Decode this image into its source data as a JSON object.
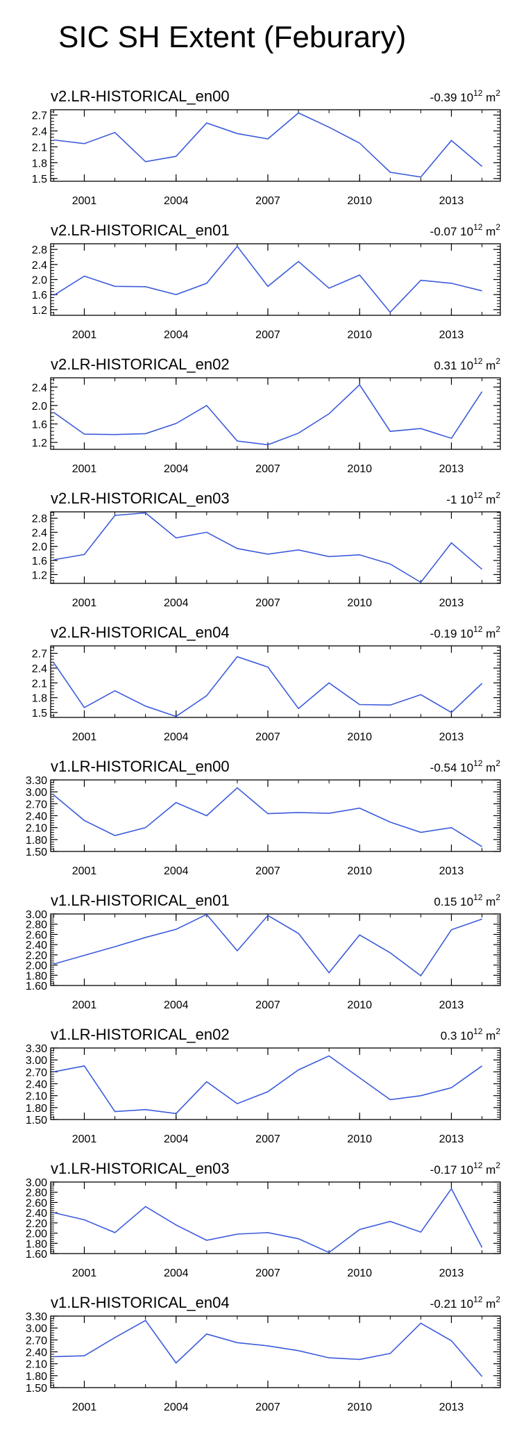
{
  "title": "SIC SH Extent (Feburary)",
  "line_color": "#3b5bdb",
  "chart_data": [
    {
      "type": "line",
      "title": "v2.LR-HISTORICAL_en00",
      "trend_value": "-0.39",
      "trend_unit": "10",
      "trend_exp": "12",
      "trend_suffix": "m",
      "trend_suffix_exp": "2",
      "x": [
        2000,
        2001,
        2002,
        2003,
        2004,
        2005,
        2006,
        2007,
        2008,
        2009,
        2010,
        2011,
        2012,
        2013,
        2014
      ],
      "values": [
        2.23,
        2.16,
        2.37,
        1.82,
        1.92,
        2.55,
        2.35,
        2.25,
        2.74,
        2.47,
        2.17,
        1.62,
        1.53,
        2.22,
        1.73
      ],
      "ylim": [
        1.45,
        2.8
      ],
      "yticks": [
        "1.5",
        "1.8",
        "2.1",
        "2.4",
        "2.7"
      ],
      "xticks": [
        "2001",
        "2004",
        "2007",
        "2010",
        "2013"
      ]
    },
    {
      "type": "line",
      "title": "v2.LR-HISTORICAL_en01",
      "trend_value": "-0.07",
      "trend_unit": "10",
      "trend_exp": "12",
      "trend_suffix": "m",
      "trend_suffix_exp": "2",
      "x": [
        2000,
        2001,
        2002,
        2003,
        2004,
        2005,
        2006,
        2007,
        2008,
        2009,
        2010,
        2011,
        2012,
        2013,
        2014
      ],
      "values": [
        1.58,
        2.09,
        1.82,
        1.81,
        1.6,
        1.9,
        2.88,
        1.82,
        2.48,
        1.77,
        2.12,
        1.13,
        1.98,
        1.9,
        1.7
      ],
      "ylim": [
        1.05,
        2.95
      ],
      "yticks": [
        "1.2",
        "1.6",
        "2.0",
        "2.4",
        "2.8"
      ],
      "xticks": [
        "2001",
        "2004",
        "2007",
        "2010",
        "2013"
      ]
    },
    {
      "type": "line",
      "title": "v2.LR-HISTORICAL_en02",
      "trend_value": "0.31",
      "trend_unit": "10",
      "trend_exp": "12",
      "trend_suffix": "m",
      "trend_suffix_exp": "2",
      "x": [
        2000,
        2001,
        2002,
        2003,
        2004,
        2005,
        2006,
        2007,
        2008,
        2009,
        2010,
        2011,
        2012,
        2013,
        2014
      ],
      "values": [
        1.85,
        1.38,
        1.37,
        1.39,
        1.61,
        2.0,
        1.23,
        1.15,
        1.4,
        1.82,
        2.45,
        1.44,
        1.5,
        1.29,
        2.3
      ],
      "ylim": [
        1.05,
        2.6
      ],
      "yticks": [
        "1.2",
        "1.6",
        "2.0",
        "2.4"
      ],
      "xticks": [
        "2001",
        "2004",
        "2007",
        "2010",
        "2013"
      ]
    },
    {
      "type": "line",
      "title": "v2.LR-HISTORICAL_en03",
      "trend_value": "-1",
      "trend_unit": "10",
      "trend_exp": "12",
      "trend_suffix": "m",
      "trend_suffix_exp": "2",
      "x": [
        2000,
        2001,
        2002,
        2003,
        2004,
        2005,
        2006,
        2007,
        2008,
        2009,
        2010,
        2011,
        2012,
        2013,
        2014
      ],
      "values": [
        1.62,
        1.77,
        2.88,
        2.95,
        2.24,
        2.4,
        1.94,
        1.78,
        1.9,
        1.71,
        1.76,
        1.5,
        0.98,
        2.1,
        1.35
      ],
      "ylim": [
        0.95,
        2.98
      ],
      "yticks": [
        "1.2",
        "1.6",
        "2.0",
        "2.4",
        "2.8"
      ],
      "xticks": [
        "2001",
        "2004",
        "2007",
        "2010",
        "2013"
      ]
    },
    {
      "type": "line",
      "title": "v2.LR-HISTORICAL_en04",
      "trend_value": "-0.19",
      "trend_unit": "10",
      "trend_exp": "12",
      "trend_suffix": "m",
      "trend_suffix_exp": "2",
      "x": [
        2000,
        2001,
        2002,
        2003,
        2004,
        2005,
        2006,
        2007,
        2008,
        2009,
        2010,
        2011,
        2012,
        2013,
        2014
      ],
      "values": [
        2.51,
        1.6,
        1.94,
        1.63,
        1.42,
        1.84,
        2.63,
        2.42,
        1.58,
        2.1,
        1.66,
        1.65,
        1.86,
        1.5,
        2.09
      ],
      "ylim": [
        1.4,
        2.85
      ],
      "yticks": [
        "1.5",
        "1.8",
        "2.1",
        "2.4",
        "2.7"
      ],
      "xticks": [
        "2001",
        "2004",
        "2007",
        "2010",
        "2013"
      ]
    },
    {
      "type": "line",
      "title": "v1.LR-HISTORICAL_en00",
      "trend_value": "-0.54",
      "trend_unit": "10",
      "trend_exp": "12",
      "trend_suffix": "m",
      "trend_suffix_exp": "2",
      "x": [
        2000,
        2001,
        2002,
        2003,
        2004,
        2005,
        2006,
        2007,
        2008,
        2009,
        2010,
        2011,
        2012,
        2013,
        2014
      ],
      "values": [
        2.92,
        2.28,
        1.9,
        2.1,
        2.73,
        2.4,
        3.1,
        2.45,
        2.48,
        2.46,
        2.59,
        2.24,
        1.98,
        2.1,
        1.62
      ],
      "ylim": [
        1.5,
        3.3
      ],
      "yticks": [
        "1.50",
        "1.80",
        "2.10",
        "2.40",
        "2.70",
        "3.00",
        "3.30"
      ],
      "xticks": [
        "2001",
        "2004",
        "2007",
        "2010",
        "2013"
      ]
    },
    {
      "type": "line",
      "title": "v1.LR-HISTORICAL_en01",
      "trend_value": "0.15",
      "trend_unit": "10",
      "trend_exp": "12",
      "trend_suffix": "m",
      "trend_suffix_exp": "2",
      "x": [
        2000,
        2001,
        2002,
        2003,
        2004,
        2005,
        2006,
        2007,
        2008,
        2009,
        2010,
        2011,
        2012,
        2013,
        2014
      ],
      "values": [
        2.02,
        2.19,
        2.36,
        2.54,
        2.7,
        2.99,
        2.28,
        2.97,
        2.62,
        1.85,
        2.59,
        2.24,
        1.79,
        2.69,
        2.9
      ],
      "ylim": [
        1.6,
        3.0
      ],
      "yticks": [
        "1.60",
        "1.80",
        "2.00",
        "2.20",
        "2.40",
        "2.60",
        "2.80",
        "3.00"
      ],
      "xticks": [
        "2001",
        "2004",
        "2007",
        "2010",
        "2013"
      ]
    },
    {
      "type": "line",
      "title": "v1.LR-HISTORICAL_en02",
      "trend_value": "0.3",
      "trend_unit": "10",
      "trend_exp": "12",
      "trend_suffix": "m",
      "trend_suffix_exp": "2",
      "x": [
        2000,
        2001,
        2002,
        2003,
        2004,
        2005,
        2006,
        2007,
        2008,
        2009,
        2010,
        2011,
        2012,
        2013,
        2014
      ],
      "values": [
        2.7,
        2.85,
        1.7,
        1.75,
        1.65,
        2.45,
        1.9,
        2.2,
        2.75,
        3.1,
        2.55,
        2.0,
        2.1,
        2.3,
        2.85
      ],
      "ylim": [
        1.5,
        3.3
      ],
      "yticks": [
        "1.50",
        "1.80",
        "2.10",
        "2.40",
        "2.70",
        "3.00",
        "3.30"
      ],
      "xticks": [
        "2001",
        "2004",
        "2007",
        "2010",
        "2013"
      ]
    },
    {
      "type": "line",
      "title": "v1.LR-HISTORICAL_en03",
      "trend_value": "-0.17",
      "trend_unit": "10",
      "trend_exp": "12",
      "trend_suffix": "m",
      "trend_suffix_exp": "2",
      "x": [
        2000,
        2001,
        2002,
        2003,
        2004,
        2005,
        2006,
        2007,
        2008,
        2009,
        2010,
        2011,
        2012,
        2013,
        2014
      ],
      "values": [
        2.4,
        2.26,
        2.01,
        2.52,
        2.16,
        1.86,
        1.98,
        2.01,
        1.89,
        1.62,
        2.07,
        2.23,
        2.02,
        2.87,
        1.72
      ],
      "ylim": [
        1.6,
        3.0
      ],
      "yticks": [
        "1.60",
        "1.80",
        "2.00",
        "2.20",
        "2.40",
        "2.60",
        "2.80",
        "3.00"
      ],
      "xticks": [
        "2001",
        "2004",
        "2007",
        "2010",
        "2013"
      ]
    },
    {
      "type": "line",
      "title": "v1.LR-HISTORICAL_en04",
      "trend_value": "-0.21",
      "trend_unit": "10",
      "trend_exp": "12",
      "trend_suffix": "m",
      "trend_suffix_exp": "2",
      "x": [
        2000,
        2001,
        2002,
        2003,
        2004,
        2005,
        2006,
        2007,
        2008,
        2009,
        2010,
        2011,
        2012,
        2013,
        2014
      ],
      "values": [
        2.28,
        2.3,
        2.76,
        3.19,
        2.12,
        2.85,
        2.63,
        2.55,
        2.43,
        2.25,
        2.21,
        2.36,
        3.12,
        2.68,
        1.78
      ],
      "ylim": [
        1.5,
        3.3
      ],
      "yticks": [
        "1.50",
        "1.80",
        "2.10",
        "2.40",
        "2.70",
        "3.00",
        "3.30"
      ],
      "xticks": [
        "2001",
        "2004",
        "2007",
        "2010",
        "2013"
      ]
    }
  ]
}
